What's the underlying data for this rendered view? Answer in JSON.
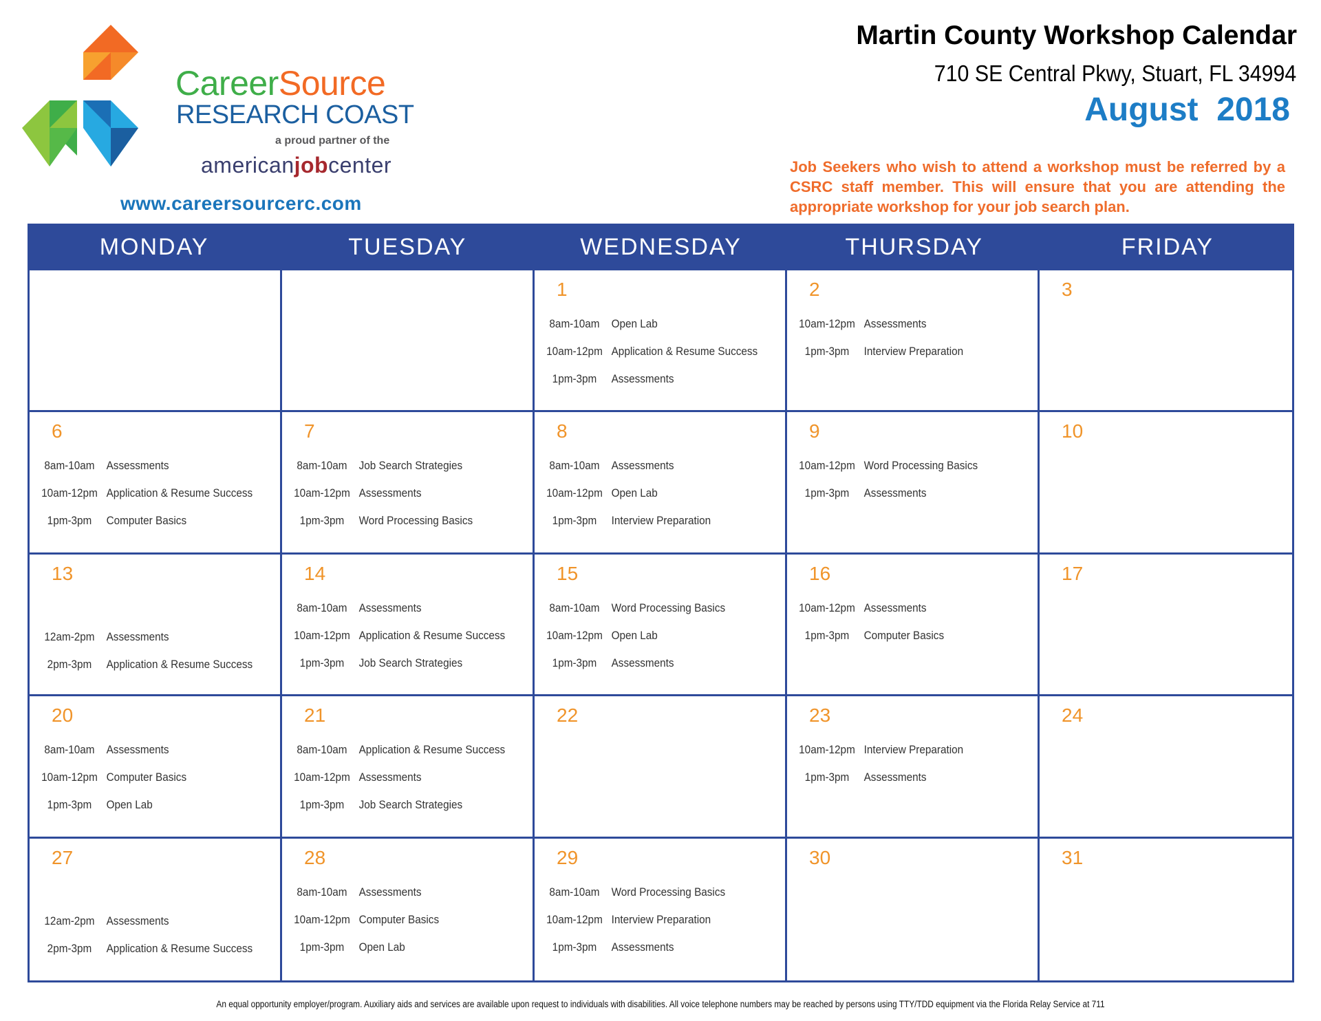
{
  "logo": {
    "brand_part1": "Career",
    "brand_part2": "Source",
    "brand_sub": "RESEARCH COAST",
    "partner_text": "a proud partner of the",
    "ajc_part1": "american",
    "ajc_part2": "job",
    "ajc_part3": "center",
    "colors": {
      "orange": "#f26a24",
      "green": "#3fae49",
      "blue": "#1b5fa0"
    }
  },
  "website": "www.careersourcerc.com",
  "header": {
    "title": "Martin County Workshop Calendar",
    "address": "710 SE Central Pkwy, Stuart, FL 34994",
    "month": "August  2018",
    "notice": "Job Seekers who wish to attend a workshop must be referred by a CSRC staff member. This will ensure that you are attending the appropriate workshop for your job search plan."
  },
  "weekdays": [
    "MONDAY",
    "TUESDAY",
    "WEDNESDAY",
    "THURSDAY",
    "FRIDAY"
  ],
  "weeks": [
    [
      {
        "day": "",
        "events": []
      },
      {
        "day": "",
        "events": []
      },
      {
        "day": "1",
        "events": [
          {
            "time": "8am-10am",
            "title": "Open Lab"
          },
          {
            "time": "10am-12pm",
            "title": "Application & Resume Success"
          },
          {
            "time": "1pm-3pm",
            "title": "Assessments"
          }
        ]
      },
      {
        "day": "2",
        "events": [
          {
            "time": "10am-12pm",
            "title": "Assessments"
          },
          {
            "time": "1pm-3pm",
            "title": "Interview Preparation"
          }
        ]
      },
      {
        "day": "3",
        "events": []
      }
    ],
    [
      {
        "day": "6",
        "events": [
          {
            "time": "8am-10am",
            "title": "Assessments"
          },
          {
            "time": "10am-12pm",
            "title": "Application & Resume Success"
          },
          {
            "time": "1pm-3pm",
            "title": "Computer Basics"
          }
        ]
      },
      {
        "day": "7",
        "events": [
          {
            "time": "8am-10am",
            "title": "Job Search Strategies"
          },
          {
            "time": "10am-12pm",
            "title": "Assessments"
          },
          {
            "time": "1pm-3pm",
            "title": "Word Processing Basics"
          }
        ]
      },
      {
        "day": "8",
        "events": [
          {
            "time": "8am-10am",
            "title": "Assessments"
          },
          {
            "time": "10am-12pm",
            "title": "Open Lab"
          },
          {
            "time": "1pm-3pm",
            "title": "Interview Preparation"
          }
        ]
      },
      {
        "day": "9",
        "events": [
          {
            "time": "10am-12pm",
            "title": "Word Processing Basics"
          },
          {
            "time": "1pm-3pm",
            "title": "Assessments"
          }
        ]
      },
      {
        "day": "10",
        "events": []
      }
    ],
    [
      {
        "day": "13",
        "events": [
          {
            "time": "12am-2pm",
            "title": "Assessments"
          },
          {
            "time": "2pm-3pm",
            "title": "Application & Resume Success"
          }
        ]
      },
      {
        "day": "14",
        "events": [
          {
            "time": "8am-10am",
            "title": "Assessments"
          },
          {
            "time": "10am-12pm",
            "title": "Application & Resume Success"
          },
          {
            "time": "1pm-3pm",
            "title": "Job Search Strategies"
          }
        ]
      },
      {
        "day": "15",
        "events": [
          {
            "time": "8am-10am",
            "title": "Word Processing Basics"
          },
          {
            "time": "10am-12pm",
            "title": "Open Lab"
          },
          {
            "time": "1pm-3pm",
            "title": "Assessments"
          }
        ]
      },
      {
        "day": "16",
        "events": [
          {
            "time": "10am-12pm",
            "title": "Assessments"
          },
          {
            "time": "1pm-3pm",
            "title": "Computer Basics"
          }
        ]
      },
      {
        "day": "17",
        "events": []
      }
    ],
    [
      {
        "day": "20",
        "events": [
          {
            "time": "8am-10am",
            "title": "Assessments"
          },
          {
            "time": "10am-12pm",
            "title": "Computer Basics"
          },
          {
            "time": "1pm-3pm",
            "title": "Open Lab"
          }
        ]
      },
      {
        "day": "21",
        "events": [
          {
            "time": "8am-10am",
            "title": "Application & Resume Success"
          },
          {
            "time": "10am-12pm",
            "title": "Assessments"
          },
          {
            "time": "1pm-3pm",
            "title": "Job Search Strategies"
          }
        ]
      },
      {
        "day": "22",
        "events": []
      },
      {
        "day": "23",
        "events": [
          {
            "time": "10am-12pm",
            "title": "Interview Preparation"
          },
          {
            "time": "1pm-3pm",
            "title": "Assessments"
          }
        ]
      },
      {
        "day": "24",
        "events": []
      }
    ],
    [
      {
        "day": "27",
        "events": [
          {
            "time": "12am-2pm",
            "title": "Assessments"
          },
          {
            "time": "2pm-3pm",
            "title": "Application & Resume Success"
          }
        ]
      },
      {
        "day": "28",
        "events": [
          {
            "time": "8am-10am",
            "title": "Assessments"
          },
          {
            "time": "10am-12pm",
            "title": "Computer Basics"
          },
          {
            "time": "1pm-3pm",
            "title": "Open Lab"
          }
        ]
      },
      {
        "day": "29",
        "events": [
          {
            "time": "8am-10am",
            "title": "Word Processing Basics"
          },
          {
            "time": "10am-12pm",
            "title": "Interview Preparation"
          },
          {
            "time": "1pm-3pm",
            "title": "Assessments"
          }
        ]
      },
      {
        "day": "30",
        "events": []
      },
      {
        "day": "31",
        "events": []
      }
    ]
  ],
  "footer": "An equal opportunity employer/program. Auxiliary aids and services are available upon request to individuals with disabilities. All voice telephone numbers may be reached by persons using TTY/TDD equipment via the Florida Relay Service at 711"
}
